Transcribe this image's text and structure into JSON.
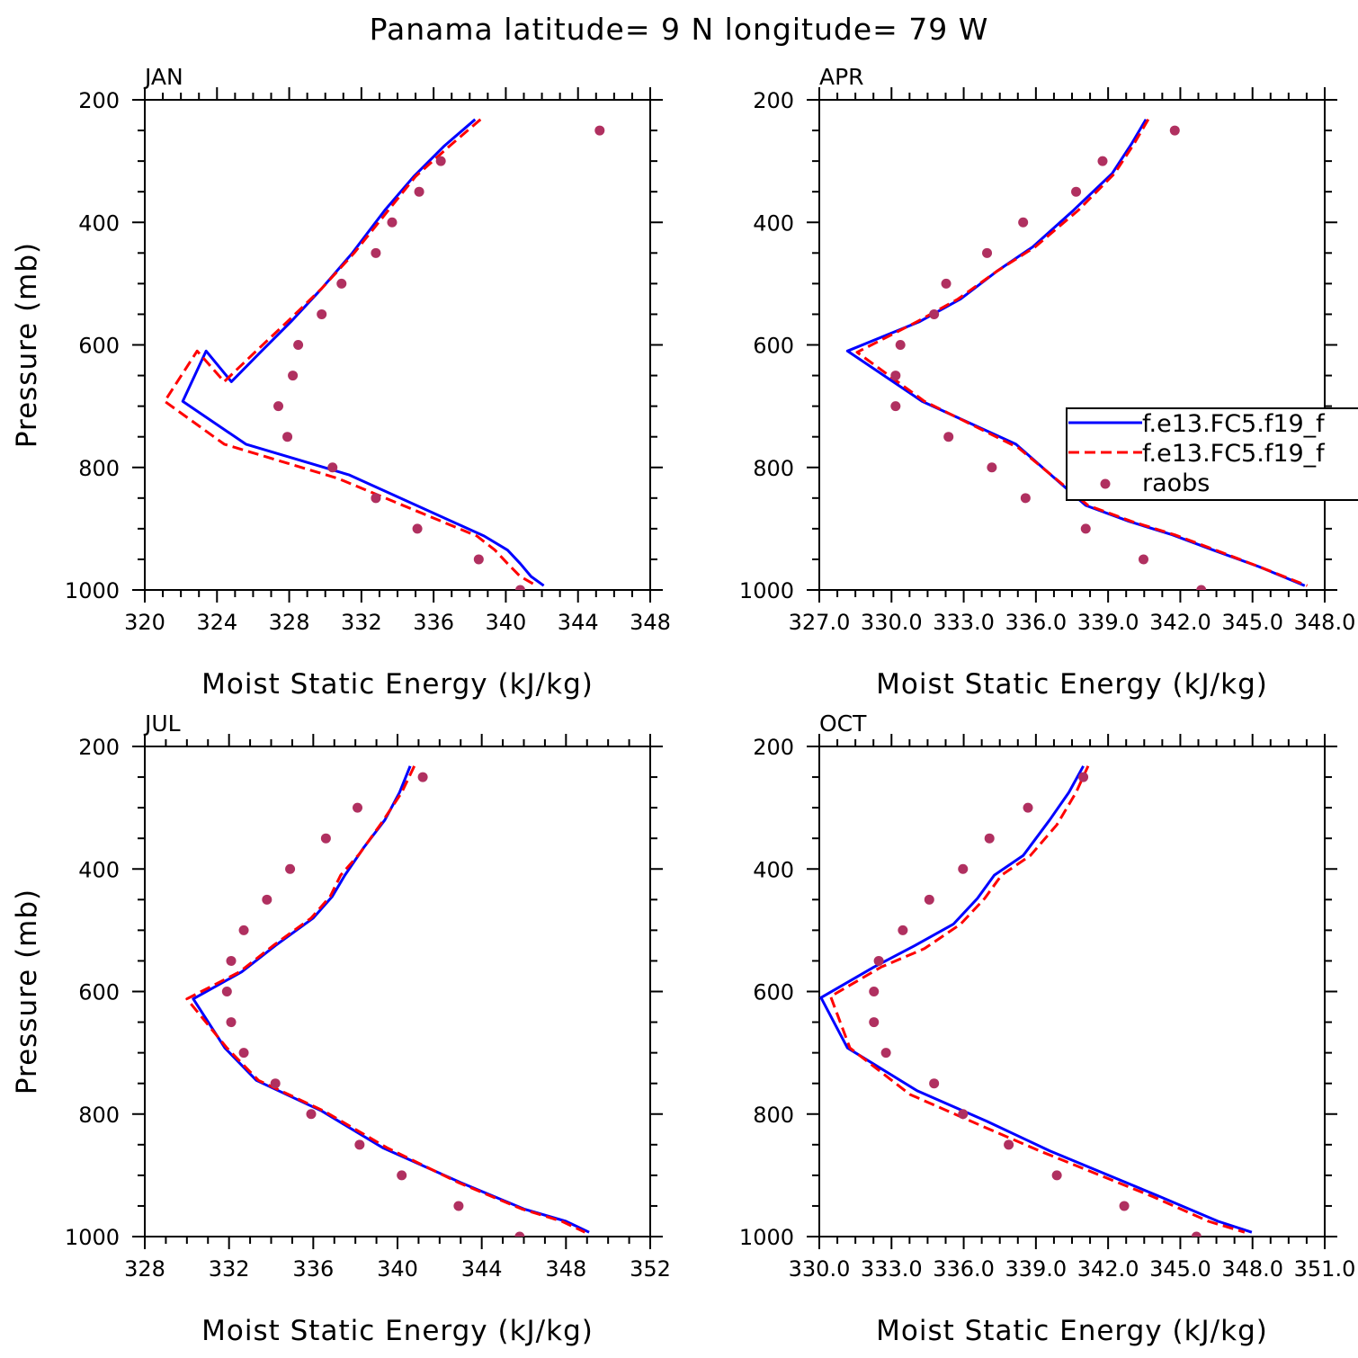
{
  "title": "Panama  latitude= 9 N longitude= 79 W",
  "colors": {
    "model_a": "#0000ff",
    "model_b": "#ff0000",
    "raobs": "#b03060",
    "axis": "#000000"
  },
  "legend": {
    "panel": "APR",
    "entries": [
      {
        "label": "f.e13.FC5.f19_f",
        "style": "solid",
        "color": "#0000ff"
      },
      {
        "label": "f.e13.FC5.f19_f",
        "style": "dashed",
        "color": "#ff0000"
      },
      {
        "label": "raobs",
        "style": "marker",
        "color": "#b03060"
      }
    ]
  },
  "chart_data": [
    {
      "type": "line",
      "title": "JAN",
      "xlabel": "Moist Static Energy (kJ/kg)",
      "ylabel": "Pressure (mb)",
      "xlim": [
        320,
        348
      ],
      "ylim": [
        1000,
        200
      ],
      "xticks": [
        320,
        324,
        328,
        332,
        336,
        340,
        344,
        348
      ],
      "xtick_labels": [
        "320",
        "324",
        "328",
        "332",
        "336",
        "340",
        "344",
        "348"
      ],
      "yticks": [
        200,
        400,
        600,
        800,
        1000
      ],
      "ytick_labels": [
        "200",
        "400",
        "600",
        "800",
        "1000"
      ],
      "series": [
        {
          "name": "f.e13.FC5.f19_f (solid)",
          "x": [
            338.3,
            336.6,
            334.9,
            333.3,
            331.5,
            329.8,
            328.1,
            326.4,
            324.8,
            323.4,
            322.1,
            325.6,
            331.3,
            338.8,
            340.1,
            340.8,
            341.4,
            342.1
          ],
          "y": [
            232,
            275,
            325,
            380,
            450,
            508,
            562,
            612,
            660,
            610,
            692,
            762,
            812,
            912,
            935,
            957,
            978,
            993
          ]
        },
        {
          "name": "f.e13.FC5.f19_f (dashed)",
          "x": [
            338.6,
            336.9,
            335.0,
            333.5,
            331.6,
            329.8,
            327.9,
            326.1,
            324.4,
            322.9,
            321.1,
            324.4,
            330.7,
            338.4,
            339.4,
            340.1,
            340.8,
            341.7
          ],
          "y": [
            232,
            275,
            325,
            380,
            450,
            508,
            562,
            612,
            660,
            610,
            692,
            762,
            818,
            912,
            935,
            957,
            978,
            993
          ]
        },
        {
          "name": "raobs",
          "x": [
            345.2,
            336.4,
            335.2,
            333.7,
            332.8,
            330.9,
            329.8,
            328.5,
            328.2,
            327.4,
            327.9,
            330.4,
            332.8,
            335.1,
            338.5,
            340.8
          ],
          "y": [
            250,
            300,
            350,
            400,
            450,
            500,
            550,
            600,
            650,
            700,
            750,
            800,
            850,
            900,
            950,
            1000
          ]
        }
      ]
    },
    {
      "type": "line",
      "title": "APR",
      "xlabel": "Moist Static Energy (kJ/kg)",
      "ylabel": "",
      "xlim": [
        327.03,
        348.03
      ],
      "ylim": [
        1000,
        200
      ],
      "xticks": [
        327.03,
        330.03,
        333.03,
        336.03,
        339.03,
        342.03,
        345.03,
        348.03
      ],
      "xtick_labels": [
        "327.0",
        "330.0",
        "333.0",
        "336.0",
        "339.0",
        "342.0",
        "345.0",
        "348.0"
      ],
      "yticks": [
        200,
        400,
        600,
        800,
        1000
      ],
      "ytick_labels": [
        "200",
        "400",
        "600",
        "800",
        "1000"
      ],
      "series": [
        {
          "name": "f.e13.FC5.f19_f (solid)",
          "x": [
            340.6,
            340.0,
            339.2,
            337.6,
            335.9,
            334.4,
            332.9,
            331.2,
            328.2,
            331.3,
            335.2,
            338.1,
            339.9,
            341.7,
            343.4,
            345.3,
            347.2
          ],
          "y": [
            232,
            272,
            320,
            380,
            440,
            480,
            525,
            562,
            610,
            692,
            762,
            862,
            888,
            910,
            935,
            962,
            993
          ]
        },
        {
          "name": "f.e13.FC5.f19_f (dashed)",
          "x": [
            340.7,
            340.1,
            339.3,
            337.8,
            336.0,
            334.4,
            332.8,
            331.1,
            328.6,
            331.4,
            335.3,
            338.2,
            340.0,
            341.8,
            343.5,
            345.3,
            347.3
          ],
          "y": [
            232,
            272,
            320,
            380,
            440,
            480,
            525,
            562,
            612,
            692,
            768,
            862,
            888,
            910,
            935,
            962,
            993
          ]
        },
        {
          "name": "raobs",
          "x": [
            341.8,
            338.8,
            337.7,
            335.5,
            334.0,
            332.3,
            331.8,
            330.4,
            330.2,
            330.2,
            332.4,
            334.2,
            335.6,
            338.1,
            340.5,
            342.9
          ],
          "y": [
            250,
            300,
            350,
            400,
            450,
            500,
            550,
            600,
            650,
            700,
            750,
            800,
            850,
            900,
            950,
            1000
          ]
        }
      ]
    },
    {
      "type": "line",
      "title": "JUL",
      "xlabel": "Moist Static Energy (kJ/kg)",
      "ylabel": "Pressure (mb)",
      "xlim": [
        328,
        352
      ],
      "ylim": [
        1000,
        200
      ],
      "xticks": [
        328,
        332,
        336,
        340,
        344,
        348,
        352
      ],
      "xtick_labels": [
        "328",
        "332",
        "336",
        "340",
        "344",
        "348",
        "352"
      ],
      "yticks": [
        200,
        400,
        600,
        800,
        1000
      ],
      "ytick_labels": [
        "200",
        "400",
        "600",
        "800",
        "1000"
      ],
      "series": [
        {
          "name": "f.e13.FC5.f19_f (solid)",
          "x": [
            340.6,
            340.1,
            339.4,
            338.4,
            337.5,
            336.9,
            336.0,
            334.2,
            332.6,
            330.3,
            331.8,
            333.3,
            336.4,
            339.3,
            343.0,
            346.0,
            348.0,
            349.1
          ],
          "y": [
            232,
            275,
            320,
            365,
            410,
            445,
            480,
            525,
            568,
            612,
            692,
            745,
            795,
            855,
            912,
            955,
            975,
            993
          ]
        },
        {
          "name": "f.e13.FC5.f19_f (dashed)",
          "x": [
            340.8,
            340.2,
            339.3,
            338.2,
            337.3,
            336.8,
            335.9,
            334.1,
            332.5,
            330.0,
            331.9,
            333.4,
            336.5,
            339.5,
            342.9,
            345.9,
            347.8,
            348.9
          ],
          "y": [
            232,
            275,
            322,
            375,
            410,
            445,
            480,
            525,
            568,
            612,
            692,
            745,
            795,
            855,
            912,
            955,
            975,
            993
          ]
        },
        {
          "name": "raobs",
          "x": [
            341.2,
            338.1,
            336.6,
            334.9,
            333.8,
            332.7,
            332.1,
            331.9,
            332.1,
            332.7,
            334.2,
            335.9,
            338.2,
            340.2,
            342.9,
            345.8
          ],
          "y": [
            250,
            300,
            350,
            400,
            450,
            500,
            550,
            600,
            650,
            700,
            750,
            800,
            850,
            900,
            950,
            1000
          ]
        }
      ]
    },
    {
      "type": "line",
      "title": "OCT",
      "xlabel": "Moist Static Energy (kJ/kg)",
      "ylabel": "",
      "xlim": [
        330.03,
        351.03
      ],
      "ylim": [
        1000,
        200
      ],
      "xticks": [
        330.03,
        333.03,
        336.03,
        339.03,
        342.03,
        345.03,
        348.03,
        351.03
      ],
      "xtick_labels": [
        "330.0",
        "333.0",
        "336.0",
        "339.0",
        "342.0",
        "345.0",
        "348.0",
        "351.0"
      ],
      "yticks": [
        200,
        400,
        600,
        800,
        1000
      ],
      "ytick_labels": [
        "200",
        "400",
        "600",
        "800",
        "1000"
      ],
      "series": [
        {
          "name": "f.e13.FC5.f19_f (solid)",
          "x": [
            341.0,
            340.4,
            339.6,
            338.5,
            337.3,
            336.6,
            335.6,
            334.0,
            332.3,
            330.1,
            331.2,
            334.1,
            337.0,
            339.6,
            344.2,
            346.6,
            348.0
          ],
          "y": [
            232,
            275,
            320,
            378,
            410,
            448,
            490,
            525,
            560,
            610,
            692,
            762,
            812,
            860,
            935,
            975,
            993
          ]
        },
        {
          "name": "f.e13.FC5.f19_f (dashed)",
          "x": [
            341.2,
            340.7,
            339.9,
            338.8,
            337.6,
            336.9,
            335.9,
            334.4,
            332.6,
            330.5,
            331.3,
            333.8,
            336.7,
            339.3,
            343.9,
            346.2,
            347.7
          ],
          "y": [
            232,
            275,
            328,
            378,
            410,
            448,
            490,
            530,
            560,
            608,
            692,
            768,
            818,
            862,
            935,
            975,
            993
          ]
        },
        {
          "name": "raobs",
          "x": [
            341.0,
            338.7,
            337.1,
            336.0,
            334.6,
            333.5,
            332.5,
            332.3,
            332.3,
            332.8,
            334.8,
            336.0,
            337.9,
            339.9,
            342.7,
            345.7
          ],
          "y": [
            250,
            300,
            350,
            400,
            450,
            500,
            550,
            600,
            650,
            700,
            750,
            800,
            850,
            900,
            950,
            1000
          ]
        }
      ]
    }
  ]
}
